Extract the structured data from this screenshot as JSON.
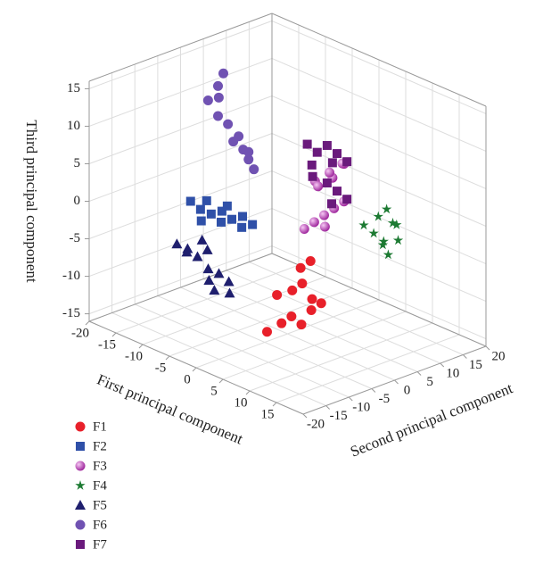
{
  "chart_data": {
    "type": "scatter3d",
    "xlabel": "First principal component",
    "ylabel": "Second principal component",
    "zlabel": "Third principal component",
    "xlim": [
      -20,
      20
    ],
    "ylim": [
      -20,
      20
    ],
    "zlim": [
      -16,
      16
    ],
    "xticks": [
      -20,
      -15,
      -10,
      -5,
      0,
      5,
      10,
      15
    ],
    "yticks": [
      -20,
      -15,
      -10,
      -5,
      0,
      5,
      10,
      15,
      20
    ],
    "zticks": [
      -15,
      -10,
      -5,
      0,
      5,
      10,
      15
    ],
    "grid": true,
    "legend": "lower left",
    "series": [
      {
        "name": "F1",
        "color": "#e8202a",
        "marker": "circle",
        "x": [
          3,
          4,
          5,
          6,
          7,
          8,
          4,
          6,
          7,
          5,
          8,
          6
        ],
        "y": [
          -8,
          -6,
          -5,
          -4,
          -3,
          -2,
          -7,
          -6,
          -5,
          -3,
          -4,
          -2
        ],
        "z": [
          -13,
          -12,
          -11,
          -12,
          -10,
          -9,
          -8,
          -7,
          -6,
          -5,
          -8,
          -4
        ]
      },
      {
        "name": "F2",
        "color": "#2f50a8",
        "marker": "square",
        "x": [
          -13,
          -12,
          -11,
          -10,
          -9,
          -8,
          -7,
          -6,
          -5,
          -4,
          -10,
          -7
        ],
        "y": [
          -6,
          -5,
          -6,
          -5,
          -4,
          -5,
          -4,
          -3,
          -4,
          -3,
          -6,
          -5
        ],
        "z": [
          -1,
          -2,
          -3,
          -2,
          -3,
          -1,
          -2,
          -3,
          -1,
          -2,
          0,
          0
        ]
      },
      {
        "name": "F3",
        "color": "#c23cc0",
        "marker": "sphere",
        "x": [
          -2,
          -1,
          0,
          1,
          2,
          -1,
          0,
          1,
          2,
          0,
          -2,
          1
        ],
        "y": [
          6,
          7,
          8,
          9,
          10,
          11,
          6,
          8,
          10,
          12,
          9,
          7
        ],
        "z": [
          -4,
          -3,
          -2,
          -1,
          0,
          2,
          3,
          4,
          5,
          4,
          1,
          -3
        ]
      },
      {
        "name": "F4",
        "color": "#1c7a32",
        "marker": "star",
        "x": [
          4,
          5,
          6,
          5,
          6,
          4,
          5,
          6,
          7,
          5
        ],
        "y": [
          12,
          13,
          14,
          15,
          16,
          17,
          18,
          15,
          16,
          14
        ],
        "z": [
          -3,
          -4,
          -5,
          -6,
          -3,
          -2,
          -4,
          -7,
          -5,
          -2
        ]
      },
      {
        "name": "F5",
        "color": "#1f1f6e",
        "marker": "triangle",
        "x": [
          -13,
          -12,
          -11,
          -10,
          -9,
          -8,
          -7,
          -6,
          -5,
          -4,
          -10,
          -6
        ],
        "y": [
          -9,
          -8,
          -9,
          -8,
          -7,
          -8,
          -9,
          -8,
          -7,
          -8,
          -7,
          -9
        ],
        "z": [
          -6,
          -7,
          -6,
          -7,
          -6,
          -8,
          -9,
          -8,
          -9,
          -10,
          -5,
          -10
        ]
      },
      {
        "name": "F6",
        "color": "#7052b2",
        "marker": "circle",
        "x": [
          -12,
          -13,
          -14,
          -13,
          -12,
          -11,
          -10,
          -9,
          -8,
          -12,
          -10,
          -9
        ],
        "y": [
          0,
          0,
          -1,
          0,
          1,
          1,
          2,
          2,
          2,
          -1,
          1,
          2
        ],
        "z": [
          15,
          13,
          11,
          9,
          8,
          6,
          5,
          4,
          3,
          12,
          7,
          5
        ]
      },
      {
        "name": "F7",
        "color": "#6a1a7c",
        "marker": "square",
        "x": [
          -4,
          -3,
          -2,
          -1,
          0,
          -3,
          -2,
          -1,
          0,
          -4,
          -2,
          -1
        ],
        "y": [
          9,
          10,
          11,
          12,
          13,
          9,
          11,
          12,
          13,
          10,
          12,
          11
        ],
        "z": [
          6,
          5,
          6,
          5,
          4,
          2,
          1,
          0,
          -1,
          3,
          -2,
          4
        ]
      }
    ]
  }
}
